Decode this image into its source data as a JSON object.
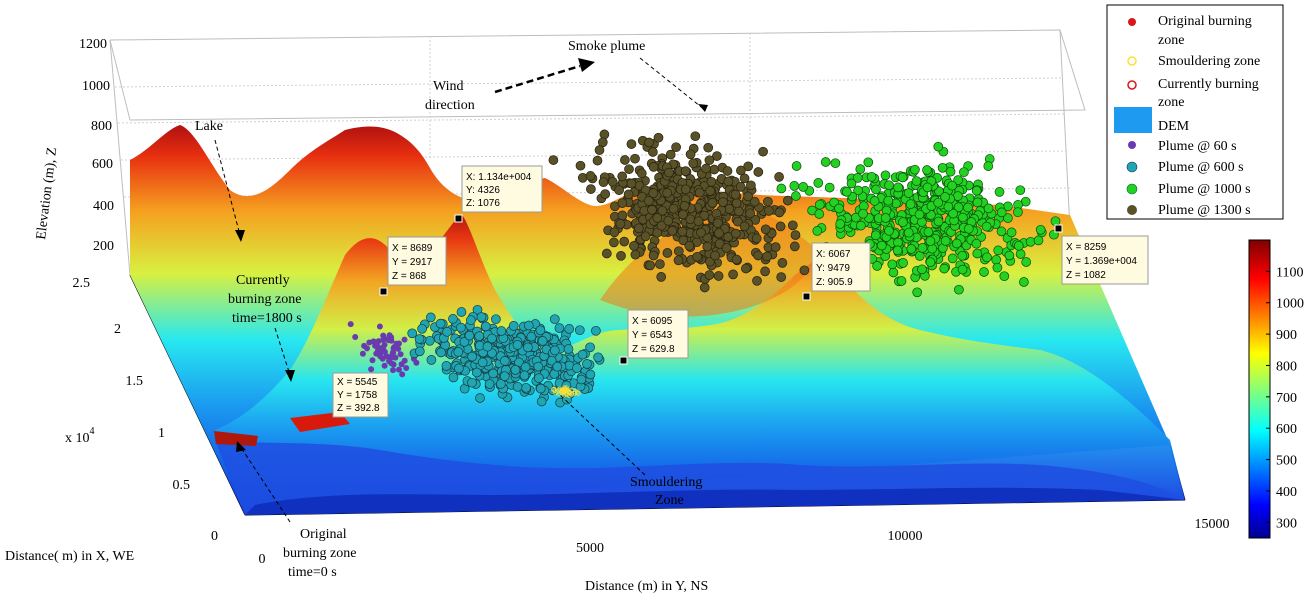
{
  "chart_data": {
    "type": "scatter",
    "view": "3d-surface-with-scatter",
    "xlabel": "Distance( m) in X, WE",
    "ylabel": "Distance (m) in Y, NS",
    "zlabel": "Elevation (m), Z",
    "x_exponent": "x 10",
    "x_exponent_power": "4",
    "x_ticks": [
      "0",
      "0.5",
      "1",
      "1.5",
      "2",
      "2.5"
    ],
    "y_ticks": [
      "0",
      "5000",
      "10000",
      "15000"
    ],
    "z_ticks": [
      "200",
      "400",
      "600",
      "800",
      "1000",
      "1200"
    ],
    "xlim": [
      0,
      25000
    ],
    "ylim": [
      0,
      15000
    ],
    "zlim": [
      200,
      1200
    ],
    "grid": true,
    "legend_position": "top-right",
    "legend": [
      {
        "label": "Original burning zone",
        "marker": "filled-circle",
        "color": "#d7191c"
      },
      {
        "label": "Smouldering zone",
        "marker": "open-circle",
        "color": "#ffe033"
      },
      {
        "label": "Currently burning zone",
        "marker": "open-circle",
        "color": "#d7191c"
      },
      {
        "label": "DEM",
        "marker": "patch",
        "color": "#1e9bf0"
      },
      {
        "label": "Plume @ 60 s",
        "marker": "filled-circle",
        "color": "#6a3bb0"
      },
      {
        "label": "Plume @ 600 s",
        "marker": "filled-circle",
        "color": "#1fa6b2"
      },
      {
        "label": "Plume @ 1000 s",
        "marker": "filled-circle",
        "color": "#22d122"
      },
      {
        "label": "Plume @ 1300 s",
        "marker": "star",
        "color": "#595127"
      }
    ],
    "colorbar": {
      "ticks": [
        "300",
        "400",
        "500",
        "600",
        "700",
        "800",
        "900",
        "1000",
        "1100"
      ],
      "min": 250,
      "max": 1200
    },
    "annotations": [
      {
        "text": "Smoke plume"
      },
      {
        "text": "Wind direction"
      },
      {
        "text": "Lake"
      },
      {
        "text": "Currently burning zone time=1800 s"
      },
      {
        "text": "Original burning zone time=0 s"
      },
      {
        "text": "Smouldering Zone"
      }
    ],
    "datatips": [
      {
        "x": "X: 1.134e+004",
        "y": "Y: 4326",
        "z": "Z: 1076"
      },
      {
        "x": "X = 8689",
        "y": "Y = 2917",
        "z": "Z = 868"
      },
      {
        "x": "X: 6067",
        "y": "Y: 9479",
        "z": "Z: 905.9"
      },
      {
        "x": "X = 8259",
        "y": "Y = 1.369e+004",
        "z": "Z = 1082"
      },
      {
        "x": "X = 6095",
        "y": "Y = 6543",
        "z": "Z = 629.8"
      },
      {
        "x": "X = 5545",
        "y": "Y = 1758",
        "z": "Z = 392.8"
      }
    ]
  }
}
